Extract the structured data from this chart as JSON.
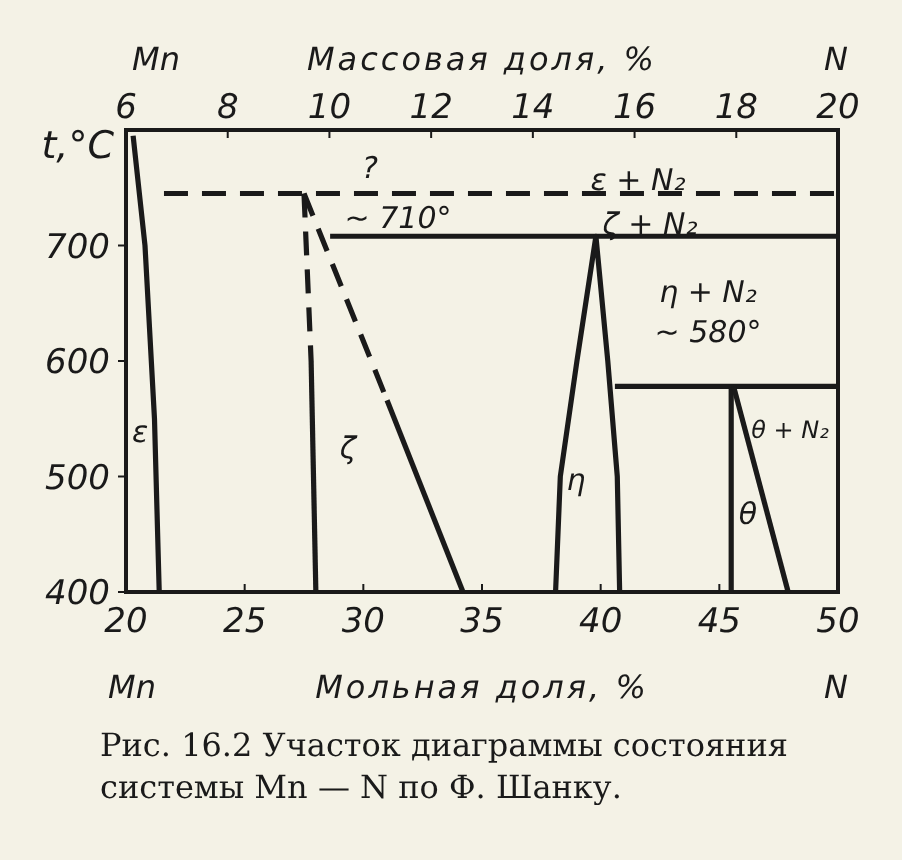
{
  "chart_data": {
    "type": "line",
    "xlabel": "Мольная доля, %",
    "x2label": "Массовая доля, %",
    "ylabel": "t,°C",
    "xlim": [
      20,
      50
    ],
    "xticks": [
      20,
      25,
      30,
      35,
      40,
      45,
      50
    ],
    "x2lim": [
      6,
      20
    ],
    "x2ticks": [
      6,
      8,
      10,
      12,
      14,
      16,
      18,
      20
    ],
    "ylim": [
      400,
      800
    ],
    "yticks": [
      400,
      500,
      600,
      700
    ],
    "grid": false,
    "series": [
      {
        "color": "#1a1a1a",
        "line_style": "solid",
        "x": [
          20.3,
          20.8,
          21.2,
          21.4
        ],
        "values": [
          795,
          700,
          550,
          400
        ]
      },
      {
        "color": "#1a1a1a",
        "line_style": "dashed",
        "x": [
          21.6,
          50
        ],
        "values": [
          745,
          745
        ]
      },
      {
        "color": "#1a1a1a",
        "line_style": "dashed",
        "x": [
          27.5,
          27.8
        ],
        "values": [
          745,
          600
        ]
      },
      {
        "color": "#1a1a1a",
        "line_style": "solid",
        "x": [
          27.8,
          28.0
        ],
        "values": [
          600,
          400
        ]
      },
      {
        "color": "#1a1a1a",
        "line_style": "dashed",
        "x": [
          27.5,
          31.0
        ],
        "values": [
          745,
          566
        ]
      },
      {
        "color": "#1a1a1a",
        "line_style": "solid",
        "x": [
          31.0,
          34.2
        ],
        "values": [
          566,
          400
        ]
      },
      {
        "color": "#1a1a1a",
        "line_style": "solid",
        "x": [
          28.6,
          50
        ],
        "values": [
          708,
          708
        ]
      },
      {
        "color": "#1a1a1a",
        "line_style": "solid",
        "x": [
          38.1,
          38.3,
          39.0,
          39.8,
          40.3,
          40.7,
          40.8
        ],
        "values": [
          400,
          500,
          600,
          708,
          600,
          500,
          400
        ]
      },
      {
        "color": "#1a1a1a",
        "line_style": "solid",
        "x": [
          40.6,
          50
        ],
        "values": [
          578,
          578
        ]
      },
      {
        "color": "#1a1a1a",
        "line_style": "solid",
        "x": [
          45.5,
          45.5
        ],
        "values": [
          578,
          400
        ]
      },
      {
        "color": "#1a1a1a",
        "line_style": "solid",
        "x": [
          45.6,
          47.9
        ],
        "values": [
          578,
          400
        ]
      }
    ],
    "annotations": [
      "?",
      "~ 710°",
      "ε + N₂",
      "ζ + N₂",
      "η + N₂",
      "~ 580°",
      "ε",
      "ζ",
      "η",
      "θ + N₂",
      "θ",
      "Mn",
      "N",
      "Mn",
      "N",
      "Рис. 16.2 Участок диаграммы состояния системы Mn — N по Ф. Шанку."
    ]
  }
}
